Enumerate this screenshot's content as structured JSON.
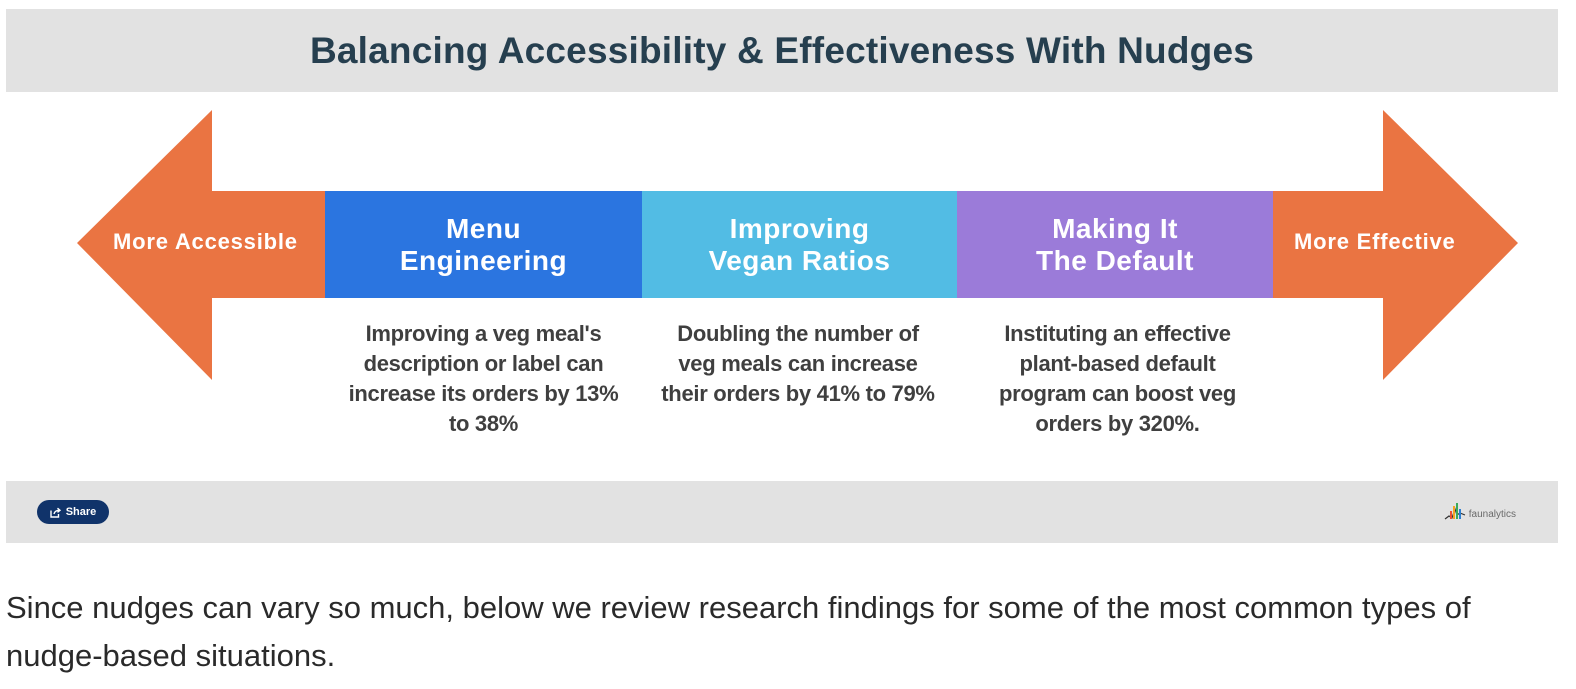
{
  "figure": {
    "title": "Balancing Accessibility & Effectiveness With Nudges",
    "left_label": "More Accessible",
    "right_label": "More Effective",
    "segments": [
      {
        "title_line1": "Menu",
        "title_line2": "Engineering",
        "color": "#2b75e0",
        "description": "Improving a veg meal's description or label can increase its orders by 13% to 38%"
      },
      {
        "title_line1": "Improving",
        "title_line2": "Vegan Ratios",
        "color": "#52bce4",
        "description": "Doubling the number of veg meals can increase their orders by 41% to 79%"
      },
      {
        "title_line1": "Making It",
        "title_line2": "The Default",
        "color": "#9b7bd9",
        "description": "Instituting an effective plant-based default program can boost veg orders by 320%."
      }
    ],
    "arrow_color": "#ea7442",
    "share_label": "Share",
    "brand_name": "faunalytics"
  },
  "caption": "Since nudges can vary so much, below we review research findings for some of the most common types of nudge-based situations."
}
